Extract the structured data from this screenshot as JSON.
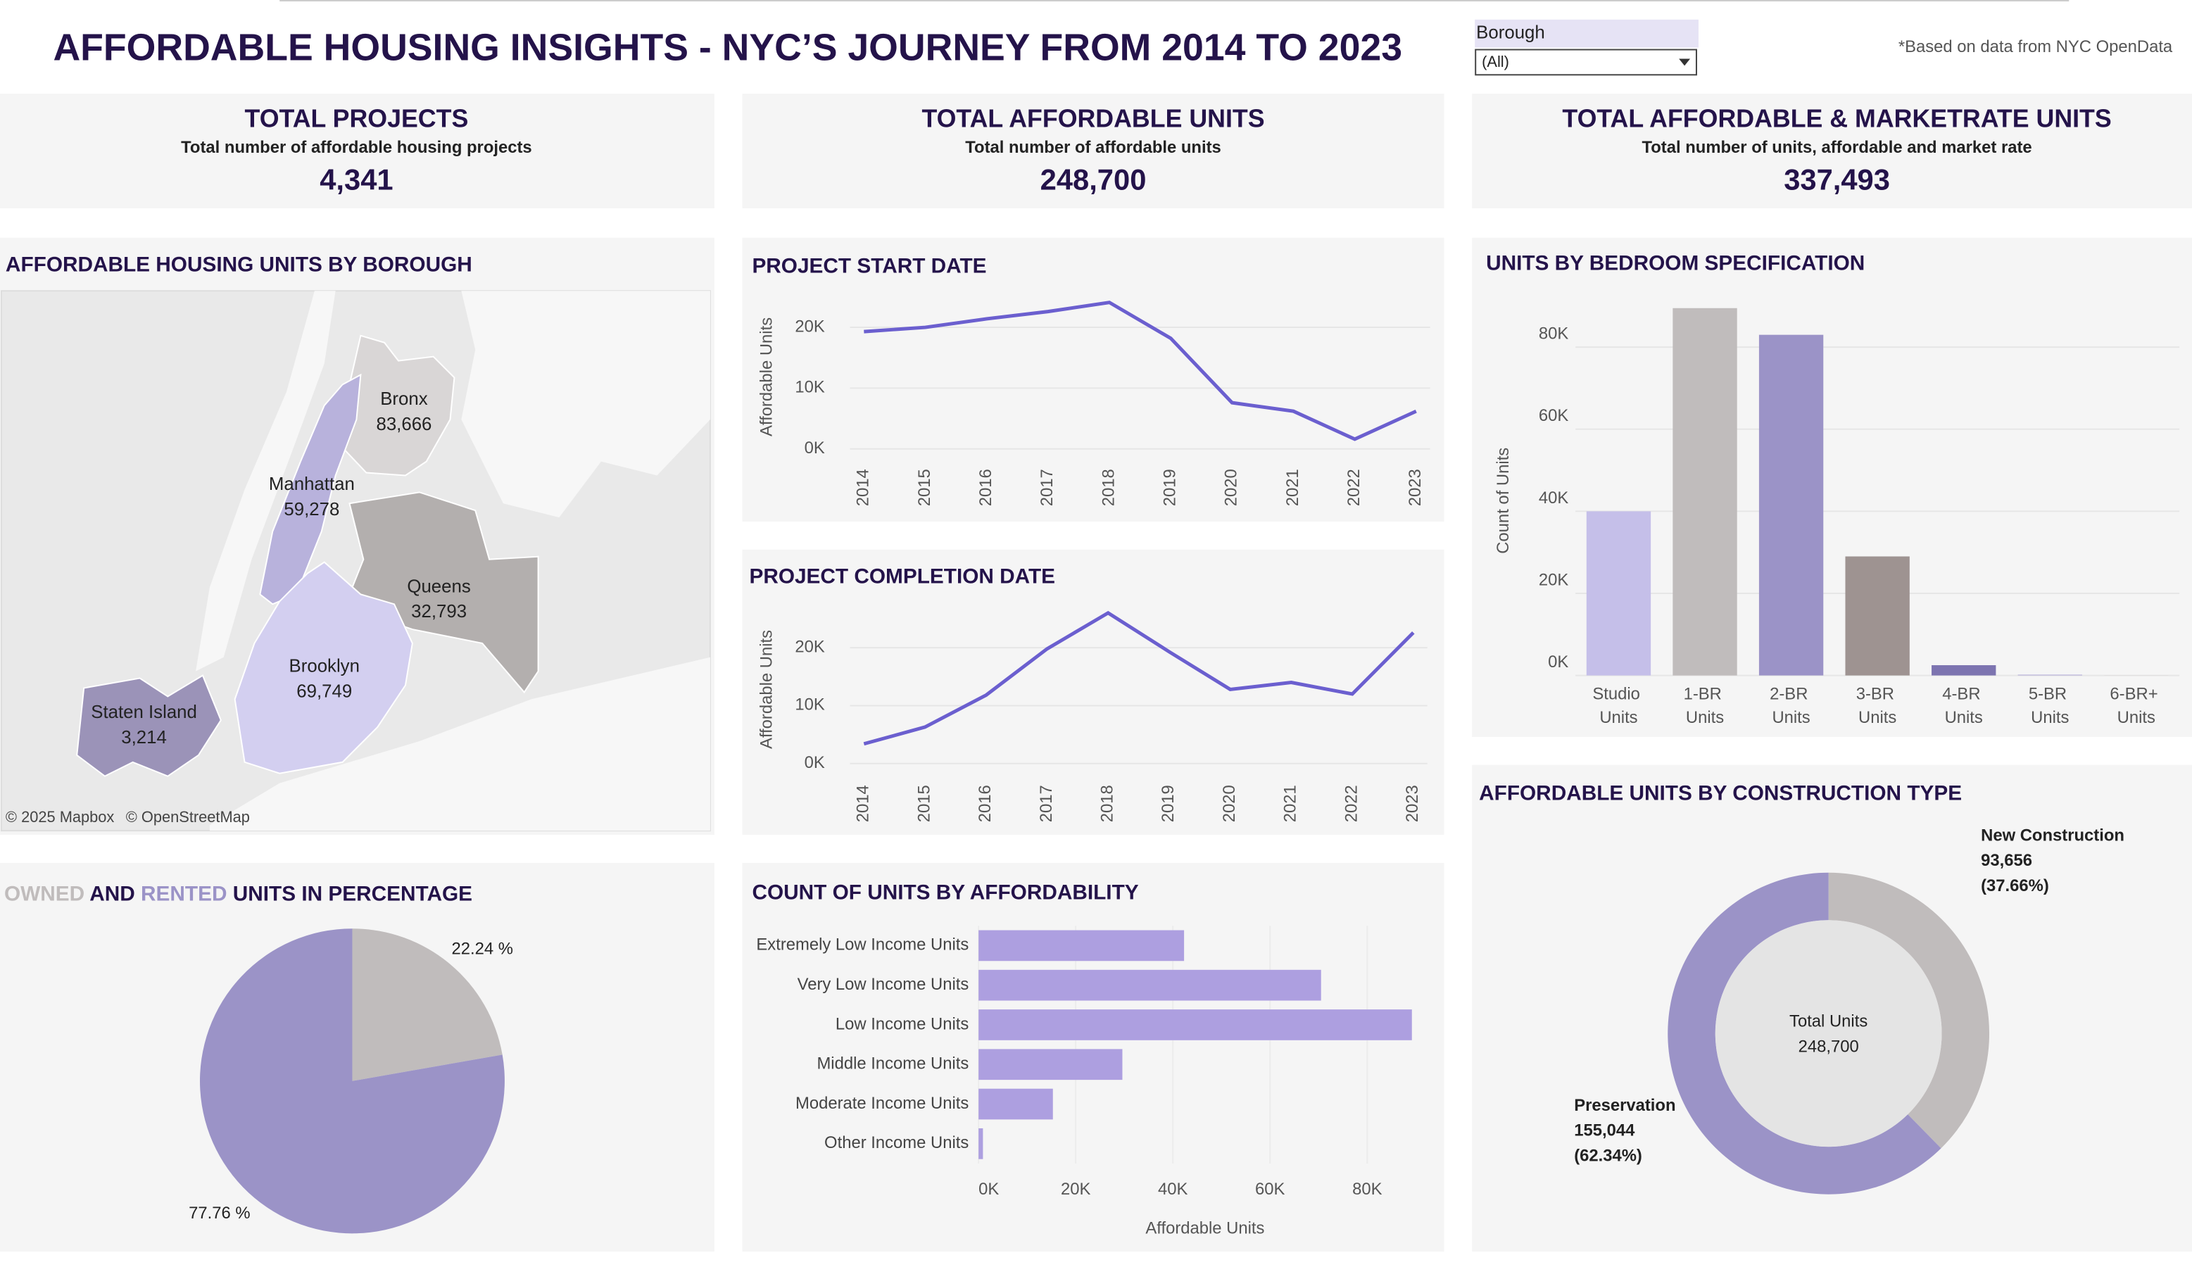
{
  "header": {
    "title": "AFFORDABLE HOUSING INSIGHTS - NYC’S JOURNEY FROM 2014 TO 2023",
    "filter_label": "Borough",
    "filter_value": "(All)",
    "note": "*Based on data from NYC OpenData"
  },
  "kpis": [
    {
      "title": "TOTAL PROJECTS",
      "subtitle": "Total number of affordable housing projects",
      "value": "4,341"
    },
    {
      "title": "TOTAL AFFORDABLE UNITS",
      "subtitle": "Total number of affordable units",
      "value": "248,700"
    },
    {
      "title": "TOTAL AFFORDABLE & MARKETRATE UNITS",
      "subtitle": "Total number of units, affordable and market rate",
      "value": "337,493"
    }
  ],
  "map": {
    "title": "AFFORDABLE HOUSING UNITS BY BOROUGH",
    "attribution": [
      "© 2025 Mapbox",
      "© OpenStreetMap"
    ],
    "boroughs": [
      {
        "name": "Bronx",
        "value": 83666,
        "value_label": "83,666",
        "color": "#d9d6d6"
      },
      {
        "name": "Manhattan",
        "value": 59278,
        "value_label": "59,278",
        "color": "#b8b2dc"
      },
      {
        "name": "Queens",
        "value": 32793,
        "value_label": "32,793",
        "color": "#b3afae"
      },
      {
        "name": "Brooklyn",
        "value": 69749,
        "value_label": "69,749",
        "color": "#d3cff0"
      },
      {
        "name": "Staten Island",
        "value": 3214,
        "value_label": "3,214",
        "color": "#9b93b8"
      }
    ]
  },
  "chart_data": [
    {
      "type": "line",
      "title": "PROJECT START DATE",
      "y_label": "Affordable Units",
      "x": [
        2014,
        2015,
        2016,
        2017,
        2018,
        2019,
        2020,
        2021,
        2022,
        2023
      ],
      "values": [
        19300,
        20000,
        21400,
        22600,
        24100,
        18200,
        7600,
        6200,
        1600,
        6200
      ],
      "color": "#6b5fcf",
      "xlim": [
        2014,
        2023
      ],
      "ylim": [
        0,
        26000
      ],
      "yticks": [
        {
          "value": 0,
          "label": "0K"
        },
        {
          "value": 10000,
          "label": "10K"
        },
        {
          "value": 20000,
          "label": "20K"
        }
      ],
      "grid": true
    },
    {
      "type": "line",
      "title": "PROJECT COMPLETION DATE",
      "y_label": "Affordable Units",
      "x": [
        2014,
        2015,
        2016,
        2017,
        2018,
        2019,
        2020,
        2021,
        2022,
        2023
      ],
      "values": [
        3400,
        6300,
        11800,
        19800,
        26000,
        19300,
        12800,
        14000,
        12000,
        22600
      ],
      "color": "#6b5fcf",
      "xlim": [
        2014,
        2023
      ],
      "ylim": [
        0,
        28000
      ],
      "yticks": [
        {
          "value": 0,
          "label": "0K"
        },
        {
          "value": 10000,
          "label": "10K"
        },
        {
          "value": 20000,
          "label": "20K"
        }
      ],
      "grid": true
    },
    {
      "type": "bar",
      "title": "UNITS BY BEDROOM SPECIFICATION",
      "y_label": "Count of Units",
      "categories": [
        "Studio Units",
        "1-BR Units",
        "2-BR Units",
        "3-BR Units",
        "4-BR Units",
        "5-BR Units",
        "6-BR+ Units"
      ],
      "values": [
        40000,
        89500,
        83000,
        29000,
        2500,
        200,
        50
      ],
      "colors": [
        "#c5bfe9",
        "#c0bcbc",
        "#9b93c7",
        "#9e9391",
        "#7d74b0",
        "#b7b0da",
        "#d9d6d6"
      ],
      "ylim": [
        0,
        92000
      ],
      "yticks": [
        {
          "value": 0,
          "label": "0K"
        },
        {
          "value": 20000,
          "label": "20K"
        },
        {
          "value": 40000,
          "label": "40K"
        },
        {
          "value": 60000,
          "label": "60K"
        },
        {
          "value": 80000,
          "label": "80K"
        }
      ],
      "grid": true
    },
    {
      "type": "hbar",
      "title": "COUNT OF UNITS BY AFFORDABILITY",
      "x_label": "Affordable Units",
      "categories": [
        "Extremely Low Income Units",
        "Very Low Income Units",
        "Low Income Units",
        "Middle Income Units",
        "Moderate Income Units",
        "Other Income Units"
      ],
      "values": [
        42300,
        70500,
        89200,
        29600,
        15300,
        900
      ],
      "color": "#ad9fe0",
      "xlim": [
        0,
        92000
      ],
      "xticks": [
        {
          "value": 0,
          "label": "0K"
        },
        {
          "value": 20000,
          "label": "20K"
        },
        {
          "value": 40000,
          "label": "40K"
        },
        {
          "value": 60000,
          "label": "60K"
        },
        {
          "value": 80000,
          "label": "80K"
        }
      ]
    },
    {
      "type": "pie",
      "categories": [
        "OWNED",
        "RENTED"
      ],
      "title_parts": [
        " AND ",
        " UNITS IN PERCENTAGE"
      ],
      "values": [
        22.24,
        77.76
      ],
      "value_labels": [
        "22.24 %",
        "77.76 %"
      ],
      "colors": [
        "#c0bcbc",
        "#9b93c7"
      ]
    },
    {
      "type": "donut",
      "title": "AFFORDABLE UNITS BY CONSTRUCTION TYPE",
      "categories": [
        "New Construction",
        "Preservation"
      ],
      "values": [
        93656,
        155044
      ],
      "value_labels": [
        "93,656",
        "155,044"
      ],
      "share_labels": [
        "(37.66%)",
        "(62.34%)"
      ],
      "colors": [
        "#c0bcbc",
        "#9b93c7"
      ],
      "center_title": "Total Units",
      "center_value": "248,700"
    }
  ]
}
